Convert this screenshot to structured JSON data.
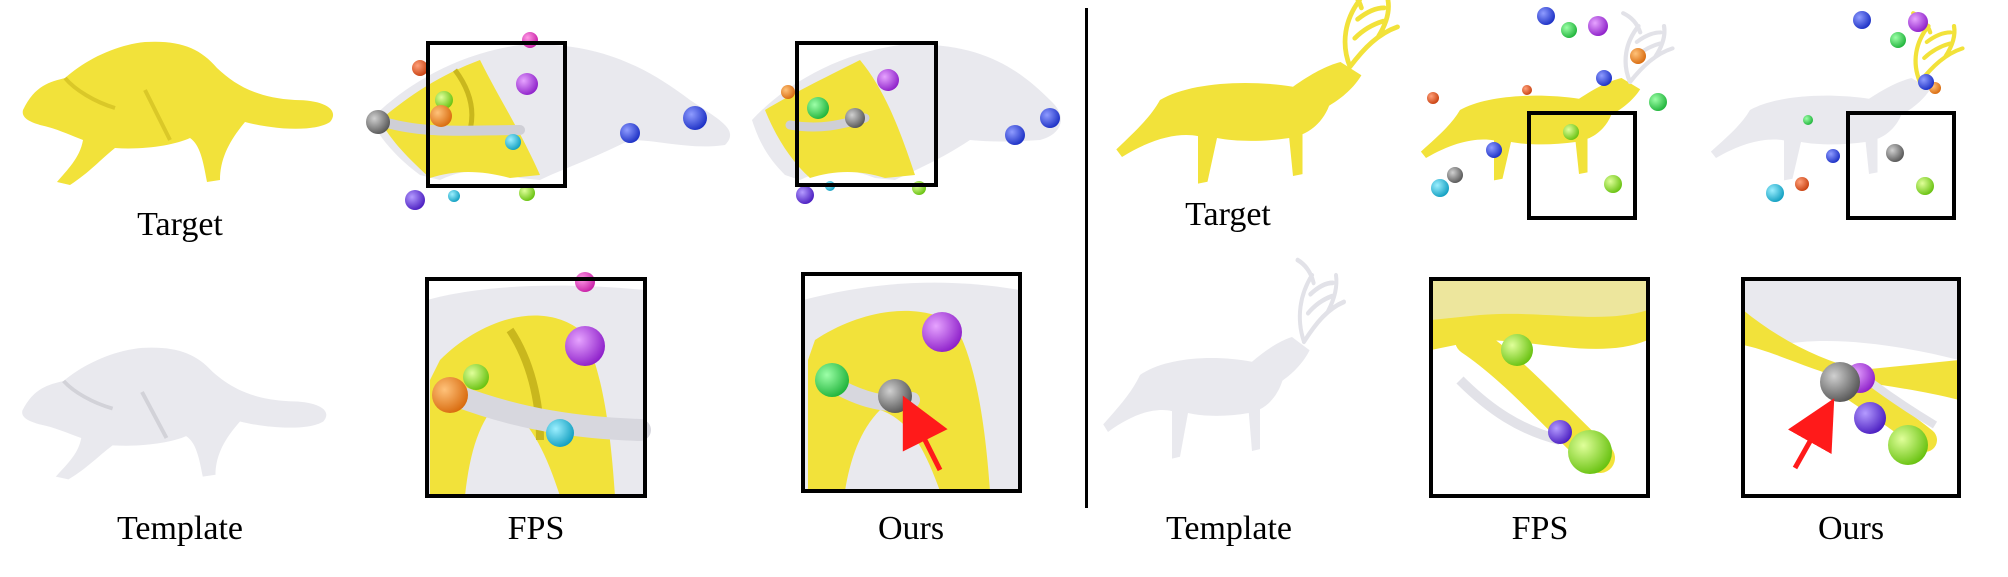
{
  "labels": {
    "left_target": "Target",
    "left_template": "Template",
    "left_fps": "FPS",
    "left_ours": "Ours",
    "right_target": "Target",
    "right_template": "Template",
    "right_fps": "FPS",
    "right_ours": "Ours"
  },
  "colors": {
    "target_mesh": "#f2e23a",
    "template_mesh": "#e9e9ee",
    "frame": "#000000",
    "arrow": "#ff1a1a",
    "keypoints": [
      "#9b2bd6",
      "#2b3fd6",
      "#7a7a7a",
      "#f08a1f",
      "#1fb6d6",
      "#7ed61f",
      "#35d64a",
      "#e05a1f",
      "#5a2bd6"
    ]
  }
}
